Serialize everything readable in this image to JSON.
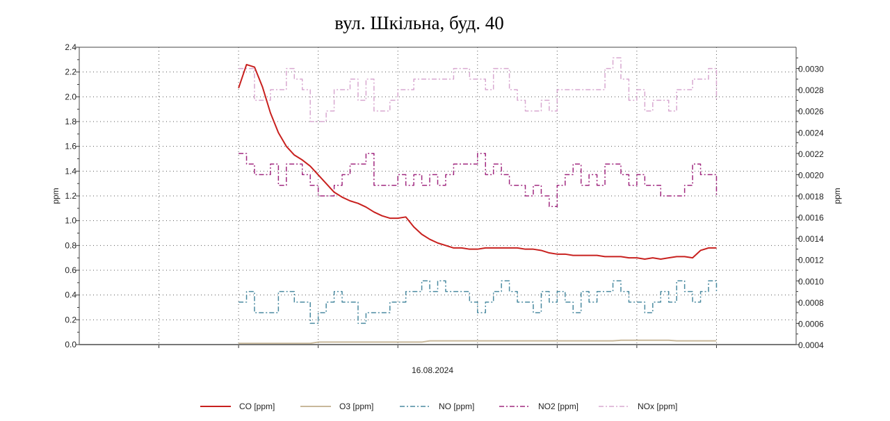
{
  "chart_data": {
    "type": "line",
    "title": "вул. Шкільна, буд. 40",
    "xlabel": "16.08.2024",
    "ylabel": "ppm",
    "ylabel_right": "ppm",
    "xlim": [
      -20,
      70
    ],
    "ylim": [
      0,
      2.4
    ],
    "ylim_right": [
      0.0004,
      0.0032
    ],
    "yticks": [
      "0.0",
      "0.2",
      "0.4",
      "0.6",
      "0.8",
      "1.0",
      "1.2",
      "1.4",
      "1.6",
      "1.8",
      "2.0",
      "2.2",
      "2.4"
    ],
    "yticks_right": [
      "0.0004",
      "0.0006",
      "0.0008",
      "0.0010",
      "0.0012",
      "0.0014",
      "0.0016",
      "0.0018",
      "0.0020",
      "0.0022",
      "0.0024",
      "0.0026",
      "0.0028",
      "0.0030"
    ],
    "grid": true,
    "legend_position": "bottom",
    "series": [
      {
        "name": "CO [ppm]",
        "axis": "left",
        "color": "#c8201e",
        "style": "solid",
        "values": [
          2.07,
          2.26,
          2.24,
          2.08,
          1.87,
          1.71,
          1.6,
          1.53,
          1.49,
          1.44,
          1.37,
          1.3,
          1.23,
          1.19,
          1.16,
          1.14,
          1.11,
          1.07,
          1.04,
          1.02,
          1.02,
          1.03,
          0.95,
          0.89,
          0.85,
          0.82,
          0.8,
          0.78,
          0.78,
          0.77,
          0.77,
          0.78,
          0.78,
          0.78,
          0.78,
          0.78,
          0.77,
          0.77,
          0.76,
          0.74,
          0.73,
          0.73,
          0.72,
          0.72,
          0.72,
          0.72,
          0.71,
          0.71,
          0.71,
          0.7,
          0.7,
          0.69,
          0.7,
          0.69,
          0.7,
          0.71,
          0.71,
          0.7,
          0.76,
          0.78,
          0.78
        ]
      },
      {
        "name": "O3 [ppm]",
        "axis": "left",
        "color": "#c8b89a",
        "style": "solid",
        "values": [
          0.01,
          0.01,
          0.01,
          0.01,
          0.01,
          0.01,
          0.01,
          0.01,
          0.01,
          0.01,
          0.02,
          0.02,
          0.02,
          0.02,
          0.02,
          0.02,
          0.02,
          0.02,
          0.02,
          0.02,
          0.02,
          0.02,
          0.02,
          0.02,
          0.03,
          0.03,
          0.03,
          0.03,
          0.03,
          0.03,
          0.03,
          0.03,
          0.03,
          0.03,
          0.03,
          0.03,
          0.03,
          0.03,
          0.03,
          0.03,
          0.03,
          0.03,
          0.03,
          0.03,
          0.03,
          0.03,
          0.03,
          0.03,
          0.035,
          0.035,
          0.035,
          0.035,
          0.035,
          0.035,
          0.035,
          0.03,
          0.03,
          0.03,
          0.03,
          0.03,
          0.03
        ]
      },
      {
        "name": "NO [ppm]",
        "axis": "right",
        "color": "#4a8aa0",
        "style": "dashdot",
        "values": [
          0.0008,
          0.0009,
          0.0007,
          0.0007,
          0.0007,
          0.0009,
          0.0009,
          0.0008,
          0.0008,
          0.0006,
          0.0007,
          0.0008,
          0.0009,
          0.0008,
          0.0008,
          0.0006,
          0.0007,
          0.0007,
          0.0007,
          0.0008,
          0.0008,
          0.0009,
          0.0009,
          0.001,
          0.0009,
          0.001,
          0.0009,
          0.0009,
          0.0009,
          0.0008,
          0.0007,
          0.0008,
          0.0009,
          0.001,
          0.0009,
          0.0008,
          0.0008,
          0.0007,
          0.0009,
          0.0008,
          0.0009,
          0.0008,
          0.0007,
          0.0009,
          0.0008,
          0.0009,
          0.0009,
          0.001,
          0.0009,
          0.0008,
          0.0008,
          0.0007,
          0.0008,
          0.0009,
          0.0008,
          0.001,
          0.0009,
          0.0008,
          0.0009,
          0.001,
          0.0009
        ]
      },
      {
        "name": "NO2 [ppm]",
        "axis": "right",
        "color": "#a0287f",
        "style": "dashdot",
        "values": [
          0.0022,
          0.0021,
          0.002,
          0.002,
          0.0021,
          0.0019,
          0.0021,
          0.0021,
          0.002,
          0.0019,
          0.0018,
          0.0018,
          0.0019,
          0.002,
          0.0021,
          0.0021,
          0.0022,
          0.0019,
          0.0019,
          0.0019,
          0.002,
          0.0019,
          0.002,
          0.0019,
          0.002,
          0.0019,
          0.002,
          0.0021,
          0.0021,
          0.0021,
          0.0022,
          0.002,
          0.0021,
          0.002,
          0.0019,
          0.0019,
          0.0018,
          0.0019,
          0.0018,
          0.0017,
          0.0019,
          0.002,
          0.0021,
          0.0019,
          0.002,
          0.0019,
          0.0021,
          0.0021,
          0.002,
          0.0019,
          0.002,
          0.0019,
          0.0019,
          0.0018,
          0.0018,
          0.0018,
          0.0019,
          0.0021,
          0.002,
          0.002,
          0.0018
        ]
      },
      {
        "name": "NOx [ppm]",
        "axis": "right",
        "color": "#d8a8d0",
        "style": "dashdot",
        "values": [
          0.003,
          0.003,
          0.0027,
          0.0027,
          0.0028,
          0.0028,
          0.003,
          0.0029,
          0.0028,
          0.0025,
          0.0025,
          0.0026,
          0.0028,
          0.0028,
          0.0029,
          0.0027,
          0.0029,
          0.0026,
          0.0026,
          0.0027,
          0.0028,
          0.0028,
          0.0029,
          0.0029,
          0.0029,
          0.0029,
          0.0029,
          0.003,
          0.003,
          0.0029,
          0.0029,
          0.0028,
          0.003,
          0.003,
          0.0028,
          0.0027,
          0.0026,
          0.0026,
          0.0027,
          0.0026,
          0.0028,
          0.0028,
          0.0028,
          0.0028,
          0.0028,
          0.0028,
          0.003,
          0.0031,
          0.0029,
          0.0027,
          0.0028,
          0.0026,
          0.0027,
          0.0027,
          0.0026,
          0.0028,
          0.0028,
          0.0029,
          0.0029,
          0.003,
          0.0027
        ]
      }
    ]
  }
}
